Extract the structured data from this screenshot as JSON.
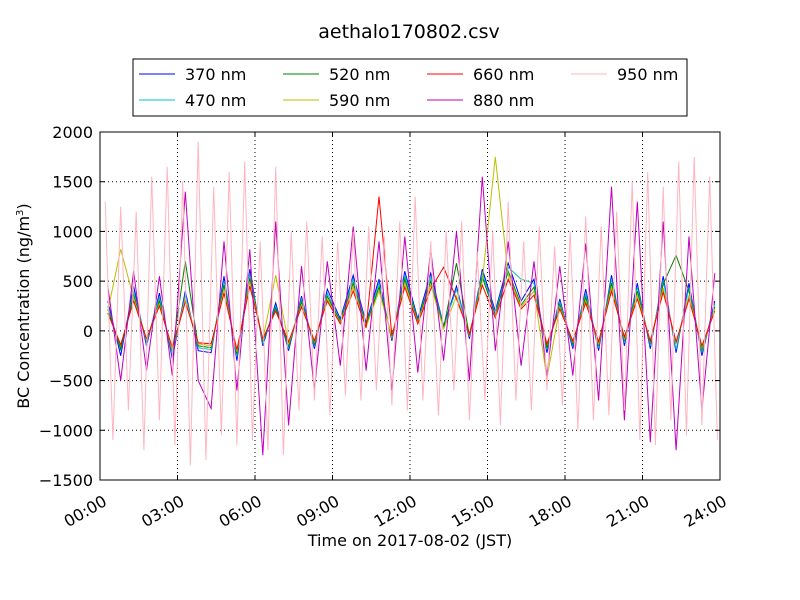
{
  "chart_data": {
    "type": "line",
    "title": "aethalo170802.csv",
    "xlabel": "Time on 2017-08-02 (JST)",
    "ylabel": "BC Concentration (ng/m³)",
    "ylabel_parts": {
      "main": "BC Concentration (ng/m",
      "sup": "3",
      "end": ")"
    },
    "xlim": [
      0,
      24
    ],
    "ylim": [
      -1500,
      2000
    ],
    "grid": true,
    "grid_style": "dotted",
    "legend_position": "top-center",
    "x_unit": "hours",
    "x_ticks": [
      0,
      3,
      6,
      9,
      12,
      15,
      18,
      21,
      24
    ],
    "x_tick_labels": [
      "00:00",
      "03:00",
      "06:00",
      "09:00",
      "12:00",
      "15:00",
      "18:00",
      "21:00",
      "24:00"
    ],
    "y_ticks": [
      -1500,
      -1000,
      -500,
      0,
      500,
      1000,
      1500,
      2000
    ],
    "y_tick_labels": [
      "−1500",
      "−1000",
      "−500",
      "0",
      "500",
      "1000",
      "1500",
      "2000"
    ],
    "series": [
      {
        "name": "370 nm",
        "color": "#0000ff",
        "x": [
          0.3,
          0.8,
          1.3,
          1.8,
          2.3,
          2.8,
          3.3,
          3.8,
          4.3,
          4.8,
          5.3,
          5.8,
          6.3,
          6.8,
          7.3,
          7.8,
          8.3,
          8.8,
          9.3,
          9.8,
          10.3,
          10.8,
          11.3,
          11.8,
          12.3,
          12.8,
          13.3,
          13.8,
          14.3,
          14.8,
          15.3,
          15.8,
          16.3,
          16.8,
          17.3,
          17.8,
          18.3,
          18.8,
          19.3,
          19.8,
          20.3,
          20.8,
          21.3,
          21.8,
          22.3,
          22.8,
          23.3,
          23.8
        ],
        "values": [
          300,
          -250,
          450,
          -150,
          380,
          -280,
          400,
          -200,
          -220,
          550,
          -300,
          620,
          -150,
          280,
          -200,
          350,
          -180,
          420,
          120,
          560,
          80,
          520,
          -100,
          600,
          120,
          580,
          50,
          450,
          -80,
          620,
          200,
          680,
          300,
          520,
          -220,
          320,
          -180,
          420,
          -200,
          560,
          -150,
          480,
          -180,
          550,
          -220,
          480,
          -250,
          300
        ]
      },
      {
        "name": "470 nm",
        "color": "#00bfbf",
        "x": [
          0.3,
          0.8,
          1.3,
          1.8,
          2.3,
          2.8,
          3.3,
          3.8,
          4.3,
          4.8,
          5.3,
          5.8,
          6.3,
          6.8,
          7.3,
          7.8,
          8.3,
          8.8,
          9.3,
          9.8,
          10.3,
          10.8,
          11.3,
          11.8,
          12.3,
          12.8,
          13.3,
          13.8,
          14.3,
          14.8,
          15.3,
          15.8,
          16.3,
          16.8,
          17.3,
          17.8,
          18.3,
          18.8,
          19.3,
          19.8,
          20.3,
          20.8,
          21.3,
          21.8,
          22.3,
          22.8,
          23.3,
          23.8
        ],
        "values": [
          250,
          -200,
          400,
          -120,
          340,
          -240,
          360,
          -170,
          -190,
          500,
          -260,
          570,
          -120,
          250,
          -170,
          320,
          -150,
          380,
          100,
          520,
          60,
          480,
          -80,
          560,
          100,
          540,
          40,
          420,
          -60,
          580,
          180,
          640,
          520,
          480,
          -190,
          290,
          -150,
          380,
          -170,
          520,
          -120,
          440,
          -150,
          510,
          -190,
          440,
          -220,
          270
        ]
      },
      {
        "name": "520 nm",
        "color": "#008000",
        "x": [
          0.3,
          0.8,
          1.3,
          1.8,
          2.3,
          2.8,
          3.3,
          3.8,
          4.3,
          4.8,
          5.3,
          5.8,
          6.3,
          6.8,
          7.3,
          7.8,
          8.3,
          8.8,
          9.3,
          9.8,
          10.3,
          10.8,
          11.3,
          11.8,
          12.3,
          12.8,
          13.3,
          13.8,
          14.3,
          14.8,
          15.3,
          15.8,
          16.3,
          16.8,
          17.3,
          17.8,
          18.3,
          18.8,
          19.3,
          19.8,
          20.3,
          20.8,
          21.3,
          21.8,
          22.3,
          22.8,
          23.3,
          23.8
        ],
        "values": [
          220,
          -180,
          360,
          -100,
          300,
          -210,
          700,
          -150,
          -170,
          460,
          -230,
          530,
          -100,
          230,
          -150,
          290,
          -130,
          350,
          90,
          480,
          50,
          440,
          -70,
          520,
          90,
          500,
          30,
          680,
          -50,
          540,
          160,
          600,
          260,
          440,
          -170,
          260,
          -130,
          340,
          -150,
          480,
          -100,
          400,
          -130,
          470,
          760,
          400,
          -190,
          240
        ]
      },
      {
        "name": "590 nm",
        "color": "#bfbf00",
        "x": [
          0.3,
          0.8,
          1.3,
          1.8,
          2.3,
          2.8,
          3.3,
          3.8,
          4.3,
          4.8,
          5.3,
          5.8,
          6.3,
          6.8,
          7.3,
          7.8,
          8.3,
          8.8,
          9.3,
          9.8,
          10.3,
          10.8,
          11.3,
          11.8,
          12.3,
          12.8,
          13.3,
          13.8,
          14.3,
          14.8,
          15.3,
          15.8,
          16.3,
          16.8,
          17.3,
          17.8,
          18.3,
          18.8,
          19.3,
          19.8,
          20.3,
          20.8,
          21.3,
          21.8,
          22.3,
          22.8,
          23.3,
          23.8
        ],
        "values": [
          200,
          820,
          330,
          -90,
          270,
          -190,
          320,
          -130,
          -150,
          420,
          -210,
          490,
          -90,
          560,
          -130,
          260,
          -110,
          320,
          80,
          440,
          40,
          400,
          -60,
          480,
          80,
          460,
          20,
          350,
          -40,
          500,
          1750,
          560,
          240,
          400,
          -480,
          240,
          -110,
          300,
          -130,
          440,
          -80,
          360,
          -110,
          430,
          -130,
          360,
          -170,
          220
        ]
      },
      {
        "name": "660 nm",
        "color": "#ff0000",
        "x": [
          0.3,
          0.8,
          1.3,
          1.8,
          2.3,
          2.8,
          3.3,
          3.8,
          4.3,
          4.8,
          5.3,
          5.8,
          6.3,
          6.8,
          7.3,
          7.8,
          8.3,
          8.8,
          9.3,
          9.8,
          10.3,
          10.8,
          11.3,
          11.8,
          12.3,
          12.8,
          13.3,
          13.8,
          14.3,
          14.8,
          15.3,
          15.8,
          16.3,
          16.8,
          17.3,
          17.8,
          18.3,
          18.8,
          19.3,
          19.8,
          20.3,
          20.8,
          21.3,
          21.8,
          22.3,
          22.8,
          23.3,
          23.8
        ],
        "values": [
          180,
          -140,
          300,
          -80,
          250,
          -170,
          290,
          -120,
          -130,
          380,
          -190,
          450,
          -80,
          200,
          -110,
          240,
          -100,
          300,
          70,
          400,
          30,
          1350,
          -50,
          440,
          70,
          420,
          640,
          320,
          -30,
          460,
          130,
          520,
          220,
          360,
          -130,
          220,
          -100,
          280,
          -110,
          400,
          -60,
          320,
          -100,
          390,
          -110,
          320,
          -150,
          200
        ]
      },
      {
        "name": "880 nm",
        "color": "#bf00bf",
        "x": [
          0.3,
          0.8,
          1.3,
          1.8,
          2.3,
          2.8,
          3.3,
          3.8,
          4.3,
          4.8,
          5.3,
          5.8,
          6.3,
          6.8,
          7.3,
          7.8,
          8.3,
          8.8,
          9.3,
          9.8,
          10.3,
          10.8,
          11.3,
          11.8,
          12.3,
          12.8,
          13.3,
          13.8,
          14.3,
          14.8,
          15.3,
          15.8,
          16.3,
          16.8,
          17.3,
          17.8,
          18.3,
          18.8,
          19.3,
          19.8,
          20.3,
          20.8,
          21.3,
          21.8,
          22.3,
          22.8,
          23.3,
          23.8
        ],
        "values": [
          450,
          -500,
          600,
          -400,
          550,
          -450,
          1400,
          -500,
          -780,
          900,
          -600,
          820,
          -1250,
          1100,
          -950,
          650,
          -600,
          700,
          -350,
          1050,
          -400,
          900,
          -600,
          950,
          -420,
          820,
          -300,
          1000,
          -500,
          1550,
          -200,
          900,
          -350,
          700,
          -450,
          650,
          -450,
          880,
          -700,
          1450,
          -900,
          1300,
          -1120,
          1100,
          -1200,
          950,
          -800,
          580
        ]
      },
      {
        "name": "950 nm",
        "color": "#ffb6c1",
        "x": [
          0.2,
          0.5,
          0.8,
          1.1,
          1.4,
          1.7,
          2.0,
          2.3,
          2.6,
          2.9,
          3.2,
          3.5,
          3.8,
          4.1,
          4.4,
          4.7,
          5.0,
          5.3,
          5.6,
          5.9,
          6.2,
          6.5,
          6.8,
          7.1,
          7.4,
          7.7,
          8.0,
          8.3,
          8.6,
          8.9,
          9.2,
          9.5,
          9.8,
          10.1,
          10.4,
          10.7,
          11.0,
          11.3,
          11.6,
          11.9,
          12.2,
          12.5,
          12.8,
          13.1,
          13.4,
          13.7,
          14.0,
          14.3,
          14.6,
          14.9,
          15.2,
          15.5,
          15.8,
          16.1,
          16.4,
          16.7,
          17.0,
          17.3,
          17.6,
          17.9,
          18.2,
          18.5,
          18.8,
          19.1,
          19.4,
          19.7,
          20.0,
          20.3,
          20.6,
          20.9,
          21.2,
          21.5,
          21.8,
          22.1,
          22.4,
          22.7,
          23.0,
          23.3,
          23.6,
          23.9
        ],
        "values": [
          1300,
          -1100,
          1250,
          -800,
          1200,
          -1200,
          1550,
          -900,
          1650,
          -1150,
          1500,
          -1350,
          1900,
          -1300,
          1450,
          -1050,
          1600,
          -1150,
          1700,
          -1100,
          900,
          -1200,
          1650,
          -1250,
          1000,
          -800,
          1100,
          -700,
          950,
          -850,
          900,
          -650,
          1000,
          -700,
          1050,
          -600,
          950,
          -750,
          1100,
          -800,
          1350,
          -700,
          900,
          -850,
          1000,
          -600,
          1100,
          -900,
          800,
          -700,
          1000,
          -950,
          1300,
          -700,
          900,
          -800,
          1050,
          -600,
          850,
          -750,
          1000,
          -1000,
          1150,
          -900,
          1050,
          -850,
          1200,
          -800,
          1500,
          -1100,
          1600,
          -1150,
          1450,
          -900,
          1700,
          -1050,
          1750,
          -950,
          1550,
          -1100
        ]
      }
    ]
  }
}
